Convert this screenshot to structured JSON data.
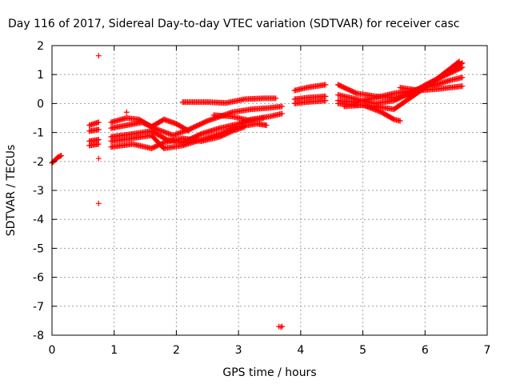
{
  "chart_data": {
    "type": "scatter",
    "title": "Day 116 of 2017, Sidereal Day-to-day VTEC variation (SDTVAR) for receiver casc",
    "xlabel": "GPS time / hours",
    "ylabel": "SDTVAR / TECUs",
    "xlim": [
      0,
      7
    ],
    "ylim": [
      -8,
      2
    ],
    "xticks": [
      "0",
      "1",
      "2",
      "3",
      "4",
      "5",
      "6",
      "7"
    ],
    "yticks": [
      "2",
      "1",
      "0",
      "-1",
      "-2",
      "-3",
      "-4",
      "-5",
      "-6",
      "-7",
      "-8"
    ],
    "grid": true,
    "marker": "plus",
    "color": "#ff0000",
    "tracks": [
      [
        [
          0.0,
          -2.05
        ],
        [
          0.05,
          -1.95
        ],
        [
          0.1,
          -1.85
        ],
        [
          0.15,
          -1.8
        ]
      ],
      [
        [
          0.6,
          -0.75
        ],
        [
          0.75,
          -0.65
        ]
      ],
      [
        [
          0.6,
          -0.95
        ],
        [
          0.75,
          -0.9
        ]
      ],
      [
        [
          0.6,
          -1.3
        ],
        [
          0.75,
          -1.25
        ]
      ],
      [
        [
          0.6,
          -1.45
        ],
        [
          0.75,
          -1.4
        ]
      ],
      [
        [
          0.95,
          -0.65
        ],
        [
          1.2,
          -0.5
        ],
        [
          1.4,
          -0.55
        ],
        [
          1.6,
          -0.8
        ],
        [
          1.8,
          -0.55
        ],
        [
          2.0,
          -0.7
        ],
        [
          2.2,
          -0.95
        ]
      ],
      [
        [
          0.95,
          -0.85
        ],
        [
          1.2,
          -0.75
        ],
        [
          1.45,
          -0.65
        ],
        [
          1.7,
          -0.9
        ],
        [
          1.95,
          -1.1
        ],
        [
          2.2,
          -0.9
        ],
        [
          2.5,
          -0.6
        ],
        [
          2.9,
          -0.3
        ],
        [
          3.2,
          -0.2
        ],
        [
          3.5,
          -0.15
        ],
        [
          3.7,
          -0.1
        ]
      ],
      [
        [
          0.95,
          -1.15
        ],
        [
          1.3,
          -1.05
        ],
        [
          1.6,
          -0.95
        ],
        [
          1.85,
          -1.25
        ],
        [
          2.1,
          -1.35
        ],
        [
          2.4,
          -1.05
        ],
        [
          2.7,
          -0.85
        ],
        [
          3.0,
          -0.7
        ],
        [
          3.2,
          -0.55
        ],
        [
          3.5,
          -0.45
        ],
        [
          3.7,
          -0.35
        ]
      ],
      [
        [
          0.95,
          -1.3
        ],
        [
          1.3,
          -1.2
        ],
        [
          1.6,
          -1.1
        ],
        [
          1.8,
          -1.55
        ],
        [
          2.1,
          -1.45
        ],
        [
          2.4,
          -1.25
        ],
        [
          2.7,
          -1.05
        ],
        [
          3.0,
          -0.8
        ],
        [
          3.3,
          -0.7
        ],
        [
          3.45,
          -0.75
        ]
      ],
      [
        [
          0.95,
          -1.5
        ],
        [
          1.3,
          -1.4
        ],
        [
          1.6,
          -1.55
        ],
        [
          1.8,
          -1.35
        ],
        [
          2.1,
          -1.2
        ],
        [
          2.4,
          -1.3
        ],
        [
          2.7,
          -1.15
        ],
        [
          2.9,
          -0.95
        ],
        [
          3.1,
          -0.8
        ]
      ],
      [
        [
          2.1,
          0.05
        ],
        [
          2.5,
          0.05
        ],
        [
          2.8,
          0.02
        ],
        [
          3.1,
          0.15
        ],
        [
          3.4,
          0.18
        ],
        [
          3.6,
          0.18
        ]
      ],
      [
        [
          2.6,
          -0.4
        ],
        [
          2.9,
          -0.45
        ],
        [
          3.2,
          -0.6
        ],
        [
          3.4,
          -0.5
        ]
      ],
      [
        [
          3.9,
          0.45
        ],
        [
          4.1,
          0.55
        ],
        [
          4.4,
          0.65
        ]
      ],
      [
        [
          3.9,
          0.15
        ],
        [
          4.1,
          0.2
        ],
        [
          4.4,
          0.25
        ]
      ],
      [
        [
          3.9,
          0.0
        ],
        [
          4.1,
          0.05
        ],
        [
          4.4,
          0.1
        ]
      ],
      [
        [
          4.6,
          0.65
        ],
        [
          4.9,
          0.35
        ],
        [
          5.2,
          0.25
        ],
        [
          5.5,
          0.2
        ],
        [
          5.8,
          0.35
        ],
        [
          6.1,
          0.7
        ],
        [
          6.4,
          1.2
        ],
        [
          6.55,
          1.45
        ]
      ],
      [
        [
          4.6,
          0.3
        ],
        [
          4.9,
          0.15
        ],
        [
          5.2,
          0.0
        ],
        [
          5.5,
          0.1
        ],
        [
          5.8,
          0.4
        ],
        [
          6.1,
          0.75
        ],
        [
          6.4,
          1.05
        ],
        [
          6.6,
          1.25
        ]
      ],
      [
        [
          4.6,
          0.0
        ],
        [
          4.9,
          -0.05
        ],
        [
          5.2,
          -0.1
        ],
        [
          5.5,
          -0.2
        ],
        [
          5.8,
          0.25
        ],
        [
          6.0,
          0.55
        ],
        [
          6.3,
          1.0
        ],
        [
          6.6,
          1.4
        ]
      ],
      [
        [
          4.6,
          0.1
        ],
        [
          4.9,
          0.05
        ],
        [
          5.2,
          0.2
        ],
        [
          5.5,
          0.35
        ],
        [
          5.8,
          0.45
        ],
        [
          6.1,
          0.6
        ],
        [
          6.4,
          0.8
        ],
        [
          6.6,
          0.9
        ]
      ],
      [
        [
          4.7,
          -0.1
        ],
        [
          5.0,
          -0.05
        ],
        [
          5.3,
          -0.3
        ],
        [
          5.5,
          -0.55
        ],
        [
          5.6,
          -0.6
        ]
      ],
      [
        [
          5.6,
          0.55
        ],
        [
          5.9,
          0.45
        ],
        [
          6.2,
          0.5
        ],
        [
          6.6,
          0.6
        ]
      ]
    ],
    "points": [
      [
        0.75,
        1.65
      ],
      [
        0.75,
        -1.9
      ],
      [
        0.75,
        -3.45
      ],
      [
        1.2,
        -0.3
      ],
      [
        3.65,
        -7.7
      ],
      [
        3.68,
        -7.72
      ],
      [
        3.7,
        -7.7
      ]
    ]
  }
}
